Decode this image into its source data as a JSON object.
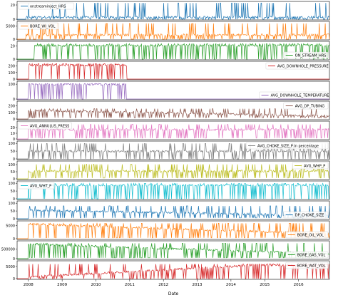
{
  "chart_data": {
    "type": "line",
    "xlabel": "Date",
    "x_ticks": [
      "2008",
      "2009",
      "2010",
      "2011",
      "2012",
      "2013",
      "2014",
      "2015",
      "2016"
    ],
    "x_range": [
      "2007-09",
      "2016-12"
    ],
    "grid": false,
    "panels": [
      {
        "series": "onstreaminject_HRS",
        "color": "#1f77b4",
        "legend": "top-left",
        "ylim": [
          0,
          24
        ],
        "yticks": [
          "0",
          "20"
        ],
        "active": [
          "2007-12",
          "2016-12"
        ],
        "pattern": "spiky",
        "base": 0.12,
        "hi": 0.95,
        "lo": 0.0
      },
      {
        "series": "BORE_WI_VOL",
        "color": "#ff7f0e",
        "legend": "top-left",
        "ylim": [
          0,
          6500
        ],
        "yticks": [
          "0",
          "5000"
        ],
        "active": [
          "2007-12",
          "2016-12"
        ],
        "pattern": "spiky",
        "base": 0.25,
        "hi": 0.92,
        "lo": 0.0
      },
      {
        "series": "ON_STREAM_HRS",
        "color": "#2ca02c",
        "legend": "bottom-right",
        "ylim": [
          0,
          26
        ],
        "yticks": [
          "0",
          "20"
        ],
        "active": [
          "2008-03",
          "2016-12"
        ],
        "pattern": "spiky",
        "base": 0.8,
        "hi": 0.9,
        "lo": 0.0
      },
      {
        "series": "AVG_DOWNHOLE_PRESSURE",
        "color": "#d62728",
        "legend": "top-right",
        "ylim": [
          0,
          260
        ],
        "yticks": [
          "0",
          "100",
          "200"
        ],
        "active": [
          "2008-01",
          "2010-12"
        ],
        "pattern": "spiky",
        "base": 0.82,
        "hi": 0.9,
        "lo": 0.0
      },
      {
        "series": "AVG_DOWNHOLE_TEMPERATURE",
        "color": "#9467bd",
        "legend": "bottom-right",
        "ylim": [
          0,
          115
        ],
        "yticks": [
          "0",
          "100"
        ],
        "active": [
          "2008-01",
          "2010-12"
        ],
        "pattern": "spiky",
        "base": 0.86,
        "hi": 0.9,
        "lo": 0.0
      },
      {
        "series": "AVG_DP_TUBING",
        "color": "#8c564b",
        "legend": "top-right",
        "ylim": [
          0,
          260
        ],
        "yticks": [
          "0",
          "100",
          "200"
        ],
        "active": [
          "2008-01",
          "2016-12"
        ],
        "pattern": "decay",
        "base": 0.45,
        "hi": 0.6,
        "lo": 0.08
      },
      {
        "series": "AVG_ANNULUS_PRESS",
        "color": "#e377c2",
        "legend": "top-left",
        "ylim": [
          0,
          30
        ],
        "yticks": [
          "0",
          "10",
          "20"
        ],
        "active": [
          "2008-01",
          "2016-12"
        ],
        "pattern": "spiky",
        "base": 0.55,
        "hi": 0.85,
        "lo": 0.05
      },
      {
        "series": "AVG_CHOKE_SIZE_P in percentage",
        "color": "#7f7f7f",
        "legend": "top-right",
        "ylim": [
          0,
          110
        ],
        "yticks": [
          "0",
          "50",
          "100"
        ],
        "active": [
          "2008-01",
          "2016-12"
        ],
        "pattern": "spiky",
        "base": 0.45,
        "hi": 0.9,
        "lo": 0.0
      },
      {
        "series": "AVG_WHP_P",
        "color": "#bcbd22",
        "legend": "top-right",
        "ylim": [
          0,
          120
        ],
        "yticks": [
          "0",
          "50",
          "100"
        ],
        "active": [
          "2008-01",
          "2016-12"
        ],
        "pattern": "spiky",
        "base": 0.45,
        "hi": 0.85,
        "lo": 0.05
      },
      {
        "series": "AVG_WHT_P",
        "color": "#17becf",
        "legend": "top-left",
        "ylim": [
          0,
          110
        ],
        "yticks": [
          "0",
          "50",
          "100"
        ],
        "active": [
          "2008-01",
          "2016-12"
        ],
        "pattern": "spiky",
        "base": 0.8,
        "hi": 0.9,
        "lo": 0.0
      },
      {
        "series": "DP_CHOKE_SIZE",
        "color": "#1f77b4",
        "legend": "bottom-right",
        "ylim": [
          0,
          110
        ],
        "yticks": [
          "0",
          "50",
          "100"
        ],
        "active": [
          "2008-01",
          "2016-12"
        ],
        "pattern": "decay",
        "base": 0.45,
        "hi": 0.75,
        "lo": 0.05
      },
      {
        "series": "BORE_OIL_VOL",
        "color": "#ff7f0e",
        "legend": "bottom-right",
        "ylim": [
          0,
          6500
        ],
        "yticks": [
          "0",
          "5000"
        ],
        "active": [
          "2008-01",
          "2016-12"
        ],
        "pattern": "decay",
        "base": 0.8,
        "hi": 0.9,
        "lo": 0.05
      },
      {
        "series": "BORE_GAS_VOL",
        "color": "#2ca02c",
        "legend": "bottom-right",
        "ylim": [
          0,
          900000
        ],
        "yticks": [
          "0",
          "500000"
        ],
        "active": [
          "2008-01",
          "2016-12"
        ],
        "pattern": "decay",
        "base": 0.8,
        "hi": 0.9,
        "lo": 0.05
      },
      {
        "series": "BORE_WAT_VOL",
        "color": "#d62728",
        "legend": "top-right",
        "ylim": [
          0,
          7000
        ],
        "yticks": [
          "0",
          "5000"
        ],
        "active": [
          "2008-01",
          "2016-12"
        ],
        "pattern": "rise",
        "base": 0.7,
        "hi": 0.85,
        "lo": 0.0
      }
    ]
  }
}
